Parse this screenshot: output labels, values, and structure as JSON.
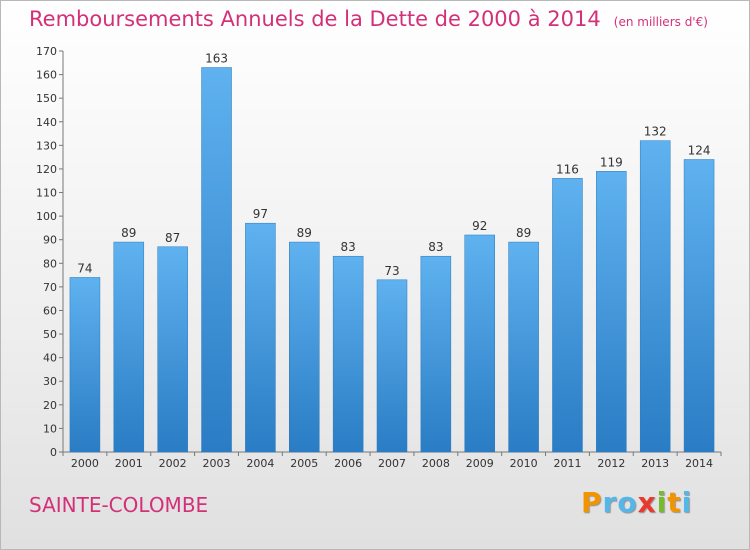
{
  "chart_data": {
    "type": "bar",
    "title": "Remboursements Annuels de la Dette de 2000 à 2014",
    "unit_label": "(en milliers d'€)",
    "categories": [
      "2000",
      "2001",
      "2002",
      "2003",
      "2004",
      "2005",
      "2006",
      "2007",
      "2008",
      "2009",
      "2010",
      "2011",
      "2012",
      "2013",
      "2014"
    ],
    "values": [
      74,
      89,
      87,
      163,
      97,
      89,
      83,
      73,
      83,
      92,
      89,
      116,
      119,
      132,
      124
    ],
    "ylim": [
      0,
      170
    ],
    "yticks": [
      0,
      10,
      20,
      30,
      40,
      50,
      60,
      70,
      80,
      90,
      100,
      110,
      120,
      130,
      140,
      150,
      160,
      170
    ],
    "grid": false,
    "bar_color": "#4a9fe3"
  },
  "footer": {
    "place": "SAINTE-COLOMBE",
    "logo_letters": [
      "P",
      "r",
      "o",
      "x",
      "i",
      "t",
      "i"
    ],
    "logo_colors": [
      "#f29400",
      "#55b6e8",
      "#55b6e8",
      "#e8392c",
      "#76bb2b",
      "#f29400",
      "#55b6e8"
    ]
  }
}
